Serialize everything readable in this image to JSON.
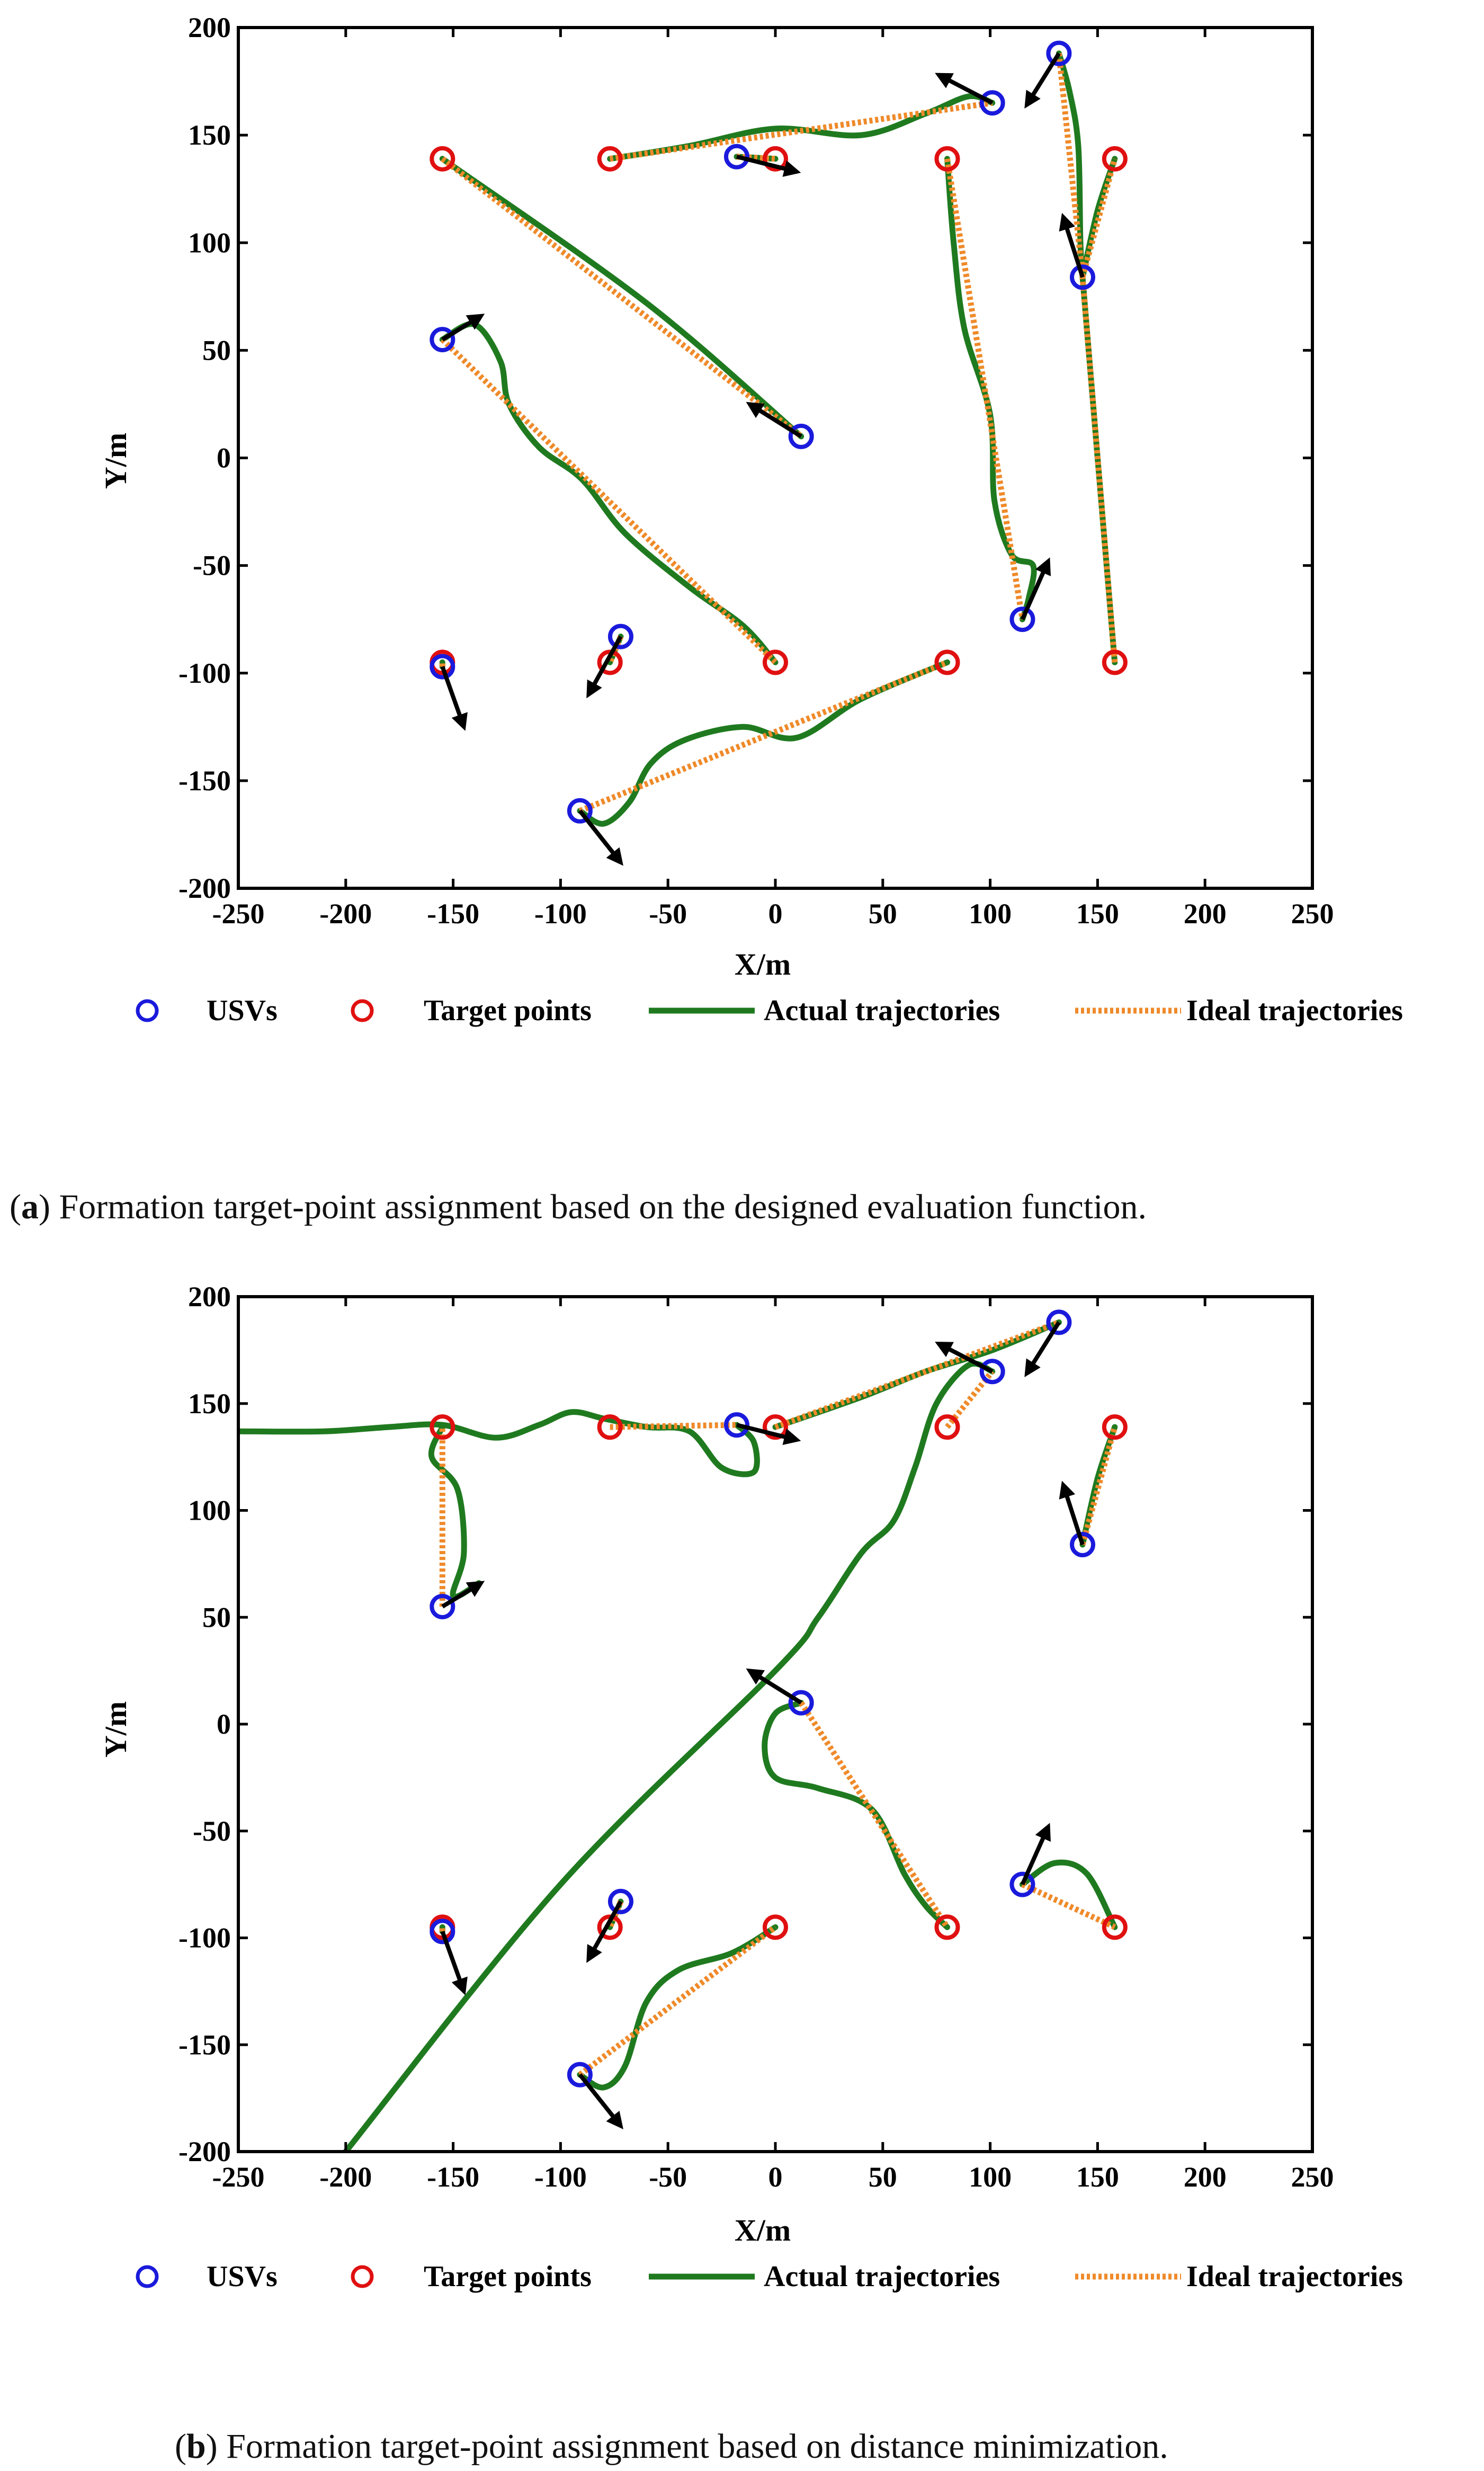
{
  "legend": {
    "usv": "USVs",
    "target": "Target points",
    "actual": "Actual trajectories",
    "ideal": "Ideal trajectories"
  },
  "colors": {
    "usv": "#1a1adc",
    "target": "#e01010",
    "actual": "#1f7a1f",
    "ideal": "#ef8a2a",
    "arrow": "#000000"
  },
  "chart_data": [
    {
      "type": "line",
      "title": "",
      "caption_letter": "a",
      "caption_text": "Formation target-point assignment based on the designed evaluation function.",
      "xlabel": "X/m",
      "ylabel": "Y/m",
      "xlim": [
        -250,
        250
      ],
      "ylim": [
        -200,
        200
      ],
      "xticks": [
        -250,
        -200,
        -150,
        -100,
        -50,
        0,
        50,
        100,
        150,
        200,
        250
      ],
      "yticks": [
        -200,
        -150,
        -100,
        -50,
        0,
        50,
        100,
        150,
        200
      ],
      "usvs": [
        [
          -155,
          55
        ],
        [
          -18,
          140
        ],
        [
          101,
          165
        ],
        [
          132,
          188
        ],
        [
          143,
          84
        ],
        [
          12,
          10
        ],
        [
          115,
          -75
        ],
        [
          -72,
          -83
        ],
        [
          -155,
          -97
        ],
        [
          -91,
          -164
        ]
      ],
      "targets": [
        [
          -155,
          139
        ],
        [
          -77,
          139
        ],
        [
          0,
          139
        ],
        [
          80,
          139
        ],
        [
          158,
          139
        ],
        [
          -155,
          -95
        ],
        [
          -77,
          -95
        ],
        [
          0,
          -95
        ],
        [
          80,
          -95
        ],
        [
          158,
          -95
        ]
      ],
      "headings": [
        [
          [
            -155,
            55
          ],
          [
            -137,
            66
          ]
        ],
        [
          [
            -18,
            140
          ],
          [
            10,
            133
          ]
        ],
        [
          [
            101,
            165
          ],
          [
            76,
            178
          ]
        ],
        [
          [
            132,
            188
          ],
          [
            117,
            164
          ]
        ],
        [
          [
            143,
            84
          ],
          [
            134,
            112
          ]
        ],
        [
          [
            12,
            10
          ],
          [
            -12,
            25
          ]
        ],
        [
          [
            115,
            -75
          ],
          [
            127,
            -48
          ]
        ],
        [
          [
            -72,
            -83
          ],
          [
            -87,
            -110
          ]
        ],
        [
          [
            -155,
            -97
          ],
          [
            -145,
            -125
          ]
        ],
        [
          [
            -91,
            -164
          ],
          [
            -72,
            -188
          ]
        ]
      ],
      "ideal": [
        [
          [
            -155,
            55
          ],
          [
            0,
            -95
          ]
        ],
        [
          [
            -77,
            139
          ],
          [
            101,
            165
          ]
        ],
        [
          [
            -18,
            140
          ],
          [
            0,
            139
          ]
        ],
        [
          [
            80,
            139
          ],
          [
            115,
            -75
          ]
        ],
        [
          [
            132,
            188
          ],
          [
            143,
            84
          ]
        ],
        [
          [
            143,
            84
          ],
          [
            158,
            139
          ]
        ],
        [
          [
            -155,
            139
          ],
          [
            12,
            10
          ]
        ],
        [
          [
            158,
            -95
          ],
          [
            143,
            84
          ]
        ],
        [
          [
            -91,
            -164
          ],
          [
            80,
            -95
          ]
        ],
        [
          [
            -155,
            -97
          ],
          [
            -155,
            -95
          ]
        ],
        [
          [
            -72,
            -83
          ],
          [
            -77,
            -95
          ]
        ]
      ],
      "actual": [
        [
          [
            -155,
            55
          ],
          [
            -140,
            62
          ],
          [
            -128,
            45
          ],
          [
            -124,
            25
          ],
          [
            -110,
            5
          ],
          [
            -90,
            -10
          ],
          [
            -70,
            -35
          ],
          [
            -40,
            -60
          ],
          [
            -15,
            -78
          ],
          [
            0,
            -95
          ]
        ],
        [
          [
            -77,
            139
          ],
          [
            -40,
            145
          ],
          [
            0,
            153
          ],
          [
            40,
            150
          ],
          [
            70,
            160
          ],
          [
            90,
            168
          ],
          [
            101,
            165
          ]
        ],
        [
          [
            -18,
            140
          ],
          [
            0,
            139
          ]
        ],
        [
          [
            80,
            139
          ],
          [
            83,
            100
          ],
          [
            88,
            60
          ],
          [
            100,
            20
          ],
          [
            102,
            -20
          ],
          [
            110,
            -45
          ],
          [
            120,
            -50
          ],
          [
            118,
            -65
          ],
          [
            115,
            -75
          ]
        ],
        [
          [
            132,
            188
          ],
          [
            137,
            170
          ],
          [
            141,
            145
          ],
          [
            142,
            100
          ],
          [
            143,
            84
          ]
        ],
        [
          [
            143,
            84
          ],
          [
            150,
            115
          ],
          [
            158,
            139
          ]
        ],
        [
          [
            -155,
            139
          ],
          [
            -60,
            72
          ],
          [
            12,
            10
          ]
        ],
        [
          [
            158,
            -95
          ],
          [
            150,
            0
          ],
          [
            143,
            84
          ]
        ],
        [
          [
            -91,
            -164
          ],
          [
            -80,
            -170
          ],
          [
            -68,
            -160
          ],
          [
            -58,
            -142
          ],
          [
            -42,
            -131
          ],
          [
            -15,
            -125
          ],
          [
            10,
            -130
          ],
          [
            40,
            -112
          ],
          [
            80,
            -95
          ]
        ],
        [
          [
            -155,
            -97
          ],
          [
            -155,
            -95
          ]
        ],
        [
          [
            -72,
            -83
          ],
          [
            -77,
            -95
          ]
        ]
      ]
    },
    {
      "type": "line",
      "title": "",
      "caption_letter": "b",
      "caption_text": "Formation target-point assignment based on distance minimization.",
      "xlabel": "X/m",
      "ylabel": "Y/m",
      "xlim": [
        -250,
        250
      ],
      "ylim": [
        -200,
        200
      ],
      "xticks": [
        -250,
        -200,
        -150,
        -100,
        -50,
        0,
        50,
        100,
        150,
        200,
        250
      ],
      "yticks": [
        -200,
        -150,
        -100,
        -50,
        0,
        50,
        100,
        150,
        200
      ],
      "usvs": [
        [
          -155,
          55
        ],
        [
          -18,
          140
        ],
        [
          101,
          165
        ],
        [
          132,
          188
        ],
        [
          143,
          84
        ],
        [
          12,
          10
        ],
        [
          115,
          -75
        ],
        [
          -72,
          -83
        ],
        [
          -155,
          -97
        ],
        [
          -91,
          -164
        ]
      ],
      "targets": [
        [
          -155,
          139
        ],
        [
          -77,
          139
        ],
        [
          0,
          139
        ],
        [
          80,
          139
        ],
        [
          158,
          139
        ],
        [
          -155,
          -95
        ],
        [
          -77,
          -95
        ],
        [
          0,
          -95
        ],
        [
          80,
          -95
        ],
        [
          158,
          -95
        ]
      ],
      "headings": [
        [
          [
            -155,
            55
          ],
          [
            -137,
            66
          ]
        ],
        [
          [
            -18,
            140
          ],
          [
            10,
            133
          ]
        ],
        [
          [
            101,
            165
          ],
          [
            76,
            178
          ]
        ],
        [
          [
            132,
            188
          ],
          [
            117,
            164
          ]
        ],
        [
          [
            143,
            84
          ],
          [
            134,
            112
          ]
        ],
        [
          [
            12,
            10
          ],
          [
            -12,
            25
          ]
        ],
        [
          [
            115,
            -75
          ],
          [
            127,
            -48
          ]
        ],
        [
          [
            -72,
            -83
          ],
          [
            -87,
            -110
          ]
        ],
        [
          [
            -155,
            -97
          ],
          [
            -145,
            -125
          ]
        ],
        [
          [
            -91,
            -164
          ],
          [
            -72,
            -188
          ]
        ]
      ],
      "ideal": [
        [
          [
            -155,
            55
          ],
          [
            -155,
            139
          ]
        ],
        [
          [
            -77,
            139
          ],
          [
            -18,
            140
          ]
        ],
        [
          [
            0,
            139
          ],
          [
            132,
            188
          ]
        ],
        [
          [
            80,
            139
          ],
          [
            101,
            165
          ]
        ],
        [
          [
            143,
            84
          ],
          [
            158,
            139
          ]
        ],
        [
          [
            12,
            10
          ],
          [
            80,
            -95
          ]
        ],
        [
          [
            115,
            -75
          ],
          [
            158,
            -95
          ]
        ],
        [
          [
            -91,
            -164
          ],
          [
            0,
            -95
          ]
        ],
        [
          [
            -155,
            -97
          ],
          [
            -155,
            -95
          ]
        ],
        [
          [
            -72,
            -83
          ],
          [
            -77,
            -95
          ]
        ]
      ],
      "actual": [
        [
          [
            -250,
            137
          ],
          [
            -210,
            137
          ],
          [
            -180,
            139
          ],
          [
            -155,
            140
          ],
          [
            -130,
            134
          ],
          [
            -110,
            140
          ],
          [
            -95,
            146
          ],
          [
            -80,
            143
          ],
          [
            -60,
            139
          ],
          [
            -40,
            137
          ],
          [
            -25,
            120
          ],
          [
            -10,
            118
          ],
          [
            -10,
            132
          ],
          [
            -18,
            140
          ]
        ],
        [
          [
            -155,
            139
          ],
          [
            -160,
            125
          ],
          [
            -148,
            110
          ],
          [
            -145,
            80
          ],
          [
            -150,
            60
          ],
          [
            -138,
            66
          ]
        ],
        [
          [
            0,
            139
          ],
          [
            40,
            153
          ],
          [
            70,
            165
          ],
          [
            101,
            175
          ],
          [
            132,
            188
          ]
        ],
        [
          [
            -200,
            -200
          ],
          [
            -100,
            -75
          ],
          [
            0,
            25
          ],
          [
            20,
            50
          ],
          [
            40,
            80
          ],
          [
            55,
            95
          ],
          [
            65,
            120
          ],
          [
            75,
            150
          ],
          [
            90,
            168
          ],
          [
            101,
            165
          ]
        ],
        [
          [
            143,
            84
          ],
          [
            150,
            115
          ],
          [
            158,
            139
          ]
        ],
        [
          [
            12,
            10
          ],
          [
            0,
            5
          ],
          [
            -5,
            -10
          ],
          [
            0,
            -25
          ],
          [
            20,
            -30
          ],
          [
            45,
            -40
          ],
          [
            60,
            -70
          ],
          [
            70,
            -85
          ],
          [
            80,
            -95
          ]
        ],
        [
          [
            115,
            -75
          ],
          [
            130,
            -65
          ],
          [
            145,
            -70
          ],
          [
            158,
            -95
          ]
        ],
        [
          [
            -91,
            -164
          ],
          [
            -80,
            -170
          ],
          [
            -70,
            -160
          ],
          [
            -60,
            -130
          ],
          [
            -45,
            -115
          ],
          [
            -20,
            -107
          ],
          [
            0,
            -95
          ]
        ],
        [
          [
            -155,
            -97
          ],
          [
            -155,
            -95
          ]
        ],
        [
          [
            -72,
            -83
          ],
          [
            -77,
            -95
          ]
        ]
      ]
    }
  ]
}
